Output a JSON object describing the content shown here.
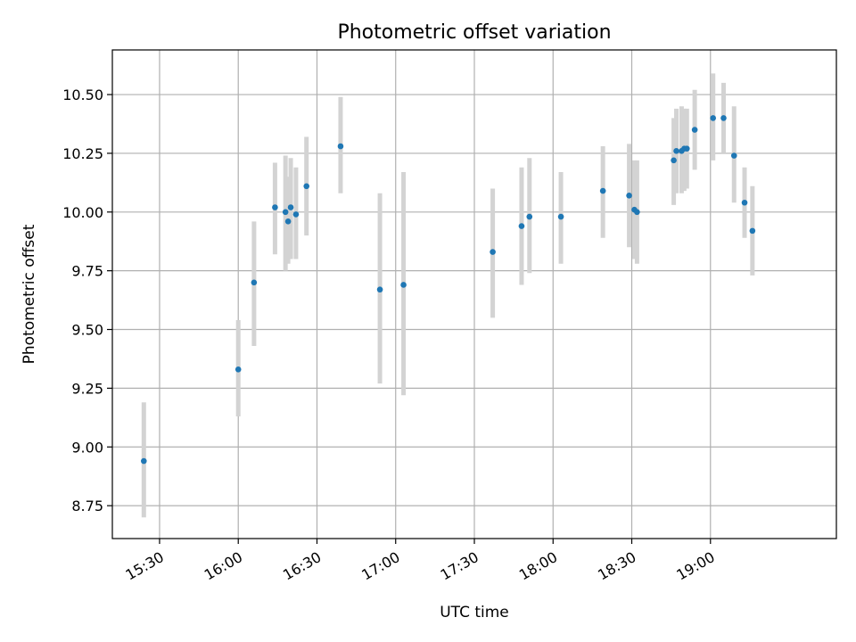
{
  "chart_data": {
    "type": "scatter",
    "title": "Photometric offset variation",
    "xlabel": "UTC time",
    "ylabel": "Photometric offset",
    "x_axis": {
      "kind": "time",
      "min": "15:12",
      "max": "19:48",
      "ticks": [
        "15:30",
        "16:00",
        "16:30",
        "17:00",
        "17:30",
        "18:00",
        "18:30",
        "19:00"
      ]
    },
    "y_axis": {
      "min": 8.61,
      "max": 10.69,
      "ticks": [
        "8.75",
        "9.00",
        "9.25",
        "9.50",
        "9.75",
        "10.00",
        "10.25",
        "10.50"
      ]
    },
    "grid": true,
    "error_bar_color": "#d3d3d3",
    "point_color": "#1f77b4",
    "series": [
      {
        "points": [
          {
            "x": "15:24",
            "y": 8.94,
            "lo": 8.7,
            "hi": 9.19
          },
          {
            "x": "16:00",
            "y": 9.33,
            "lo": 9.13,
            "hi": 9.54
          },
          {
            "x": "16:06",
            "y": 9.7,
            "lo": 9.43,
            "hi": 9.96
          },
          {
            "x": "16:14",
            "y": 10.02,
            "lo": 9.82,
            "hi": 10.21
          },
          {
            "x": "16:18",
            "y": 10.0,
            "lo": 9.75,
            "hi": 10.24
          },
          {
            "x": "16:19",
            "y": 9.96,
            "lo": 9.78,
            "hi": 10.15
          },
          {
            "x": "16:20",
            "y": 10.02,
            "lo": 9.8,
            "hi": 10.23
          },
          {
            "x": "16:22",
            "y": 9.99,
            "lo": 9.8,
            "hi": 10.19
          },
          {
            "x": "16:26",
            "y": 10.11,
            "lo": 9.9,
            "hi": 10.32
          },
          {
            "x": "16:39",
            "y": 10.28,
            "lo": 10.08,
            "hi": 10.49
          },
          {
            "x": "16:54",
            "y": 9.67,
            "lo": 9.27,
            "hi": 10.08
          },
          {
            "x": "17:03",
            "y": 9.69,
            "lo": 9.22,
            "hi": 10.17
          },
          {
            "x": "17:37",
            "y": 9.83,
            "lo": 9.55,
            "hi": 10.1
          },
          {
            "x": "17:48",
            "y": 9.94,
            "lo": 9.69,
            "hi": 10.19
          },
          {
            "x": "17:51",
            "y": 9.98,
            "lo": 9.74,
            "hi": 10.23
          },
          {
            "x": "18:03",
            "y": 9.98,
            "lo": 9.78,
            "hi": 10.17
          },
          {
            "x": "18:19",
            "y": 10.09,
            "lo": 9.89,
            "hi": 10.28
          },
          {
            "x": "18:29",
            "y": 10.07,
            "lo": 9.85,
            "hi": 10.29
          },
          {
            "x": "18:31",
            "y": 10.01,
            "lo": 9.8,
            "hi": 10.22
          },
          {
            "x": "18:32",
            "y": 10.0,
            "lo": 9.78,
            "hi": 10.22
          },
          {
            "x": "18:46",
            "y": 10.22,
            "lo": 10.03,
            "hi": 10.4
          },
          {
            "x": "18:47",
            "y": 10.26,
            "lo": 10.08,
            "hi": 10.44
          },
          {
            "x": "18:49",
            "y": 10.26,
            "lo": 10.08,
            "hi": 10.45
          },
          {
            "x": "18:50",
            "y": 10.27,
            "lo": 10.09,
            "hi": 10.44
          },
          {
            "x": "18:51",
            "y": 10.27,
            "lo": 10.1,
            "hi": 10.44
          },
          {
            "x": "18:54",
            "y": 10.35,
            "lo": 10.18,
            "hi": 10.52
          },
          {
            "x": "19:01",
            "y": 10.4,
            "lo": 10.22,
            "hi": 10.59
          },
          {
            "x": "19:05",
            "y": 10.4,
            "lo": 10.25,
            "hi": 10.55
          },
          {
            "x": "19:09",
            "y": 10.24,
            "lo": 10.04,
            "hi": 10.45
          },
          {
            "x": "19:13",
            "y": 10.04,
            "lo": 9.89,
            "hi": 10.19
          },
          {
            "x": "19:16",
            "y": 9.92,
            "lo": 9.73,
            "hi": 10.11
          }
        ]
      }
    ]
  }
}
